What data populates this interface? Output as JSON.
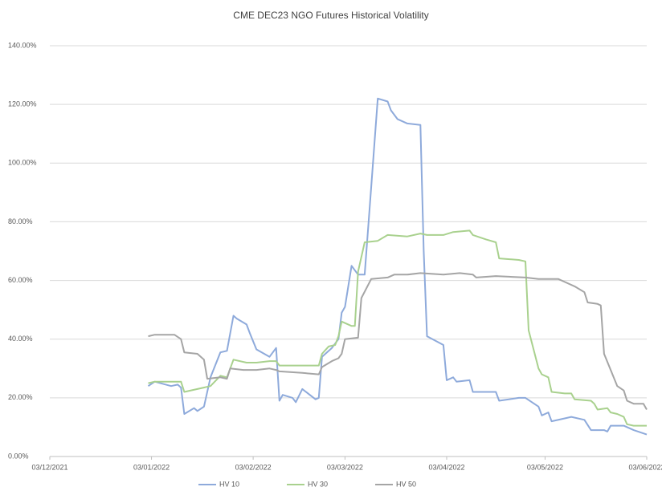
{
  "chart_data": {
    "type": "line",
    "title": "CME DEC23 NGO Futures Historical Volatility",
    "xlim": [
      "2021-12-03",
      "2022-06-03"
    ],
    "xticks": [
      {
        "value": "2021-12-03",
        "label": "03/12/2021"
      },
      {
        "value": "2022-01-03",
        "label": "03/01/2022"
      },
      {
        "value": "2022-02-03",
        "label": "03/02/2022"
      },
      {
        "value": "2022-03-03",
        "label": "03/03/2022"
      },
      {
        "value": "2022-04-03",
        "label": "03/04/2022"
      },
      {
        "value": "2022-05-03",
        "label": "03/05/2022"
      },
      {
        "value": "2022-06-03",
        "label": "03/06/2022"
      }
    ],
    "ylim": [
      0,
      140
    ],
    "yticks": [
      {
        "value": 0,
        "label": "0.00%"
      },
      {
        "value": 20,
        "label": "20.00%"
      },
      {
        "value": 40,
        "label": "40.00%"
      },
      {
        "value": 60,
        "label": "60.00%"
      },
      {
        "value": 80,
        "label": "80.00%"
      },
      {
        "value": 100,
        "label": "100.00%"
      },
      {
        "value": 120,
        "label": "120.00%"
      },
      {
        "value": 140,
        "label": "140.00%"
      }
    ],
    "grid": true,
    "legend": "bottom",
    "series": [
      {
        "name": "HV 10",
        "color": "#8eaadb",
        "x": [
          "2022-01-02",
          "2022-01-04",
          "2022-01-09",
          "2022-01-11",
          "2022-01-12",
          "2022-01-13",
          "2022-01-16",
          "2022-01-17",
          "2022-01-19",
          "2022-01-21",
          "2022-01-24",
          "2022-01-26",
          "2022-01-28",
          "2022-01-29",
          "2022-02-01",
          "2022-02-02",
          "2022-02-04",
          "2022-02-08",
          "2022-02-10",
          "2022-02-11",
          "2022-02-12",
          "2022-02-15",
          "2022-02-16",
          "2022-02-18",
          "2022-02-22",
          "2022-02-23",
          "2022-02-24",
          "2022-02-27",
          "2022-03-01",
          "2022-03-02",
          "2022-03-03",
          "2022-03-05",
          "2022-03-07",
          "2022-03-09",
          "2022-03-11",
          "2022-03-13",
          "2022-03-16",
          "2022-03-17",
          "2022-03-19",
          "2022-03-22",
          "2022-03-26",
          "2022-03-27",
          "2022-03-28",
          "2022-04-02",
          "2022-04-03",
          "2022-04-05",
          "2022-04-06",
          "2022-04-10",
          "2022-04-11",
          "2022-04-15",
          "2022-04-18",
          "2022-04-19",
          "2022-04-25",
          "2022-04-27",
          "2022-05-01",
          "2022-05-02",
          "2022-05-04",
          "2022-05-05",
          "2022-05-09",
          "2022-05-11",
          "2022-05-15",
          "2022-05-17",
          "2022-05-21",
          "2022-05-22",
          "2022-05-23",
          "2022-05-27",
          "2022-05-30",
          "2022-06-03"
        ],
        "values": [
          24,
          25.5,
          24,
          24.5,
          23.5,
          14.5,
          16.5,
          15.5,
          17,
          27,
          35.5,
          36,
          48,
          47,
          45,
          42,
          36.5,
          34,
          37,
          19,
          21,
          20,
          18.5,
          23,
          19.5,
          20,
          34,
          37,
          40,
          49,
          51,
          65,
          62,
          62,
          92,
          122,
          121,
          118,
          115,
          113.5,
          113,
          70,
          41,
          38,
          26,
          27,
          25.5,
          26,
          22,
          22,
          22,
          19,
          20,
          20,
          17,
          14,
          15,
          12,
          13,
          13.5,
          12.5,
          9,
          9,
          8.5,
          10.5,
          10.5,
          9,
          7.5
        ]
      },
      {
        "name": "HV 30",
        "color": "#a9d18e",
        "x": [
          "2022-01-02",
          "2022-01-04",
          "2022-01-12",
          "2022-01-13",
          "2022-01-17",
          "2022-01-21",
          "2022-01-24",
          "2022-01-26",
          "2022-01-28",
          "2022-02-01",
          "2022-02-04",
          "2022-02-08",
          "2022-02-10",
          "2022-02-11",
          "2022-02-18",
          "2022-02-23",
          "2022-02-24",
          "2022-02-26",
          "2022-02-28",
          "2022-03-01",
          "2022-03-02",
          "2022-03-05",
          "2022-03-06",
          "2022-03-07",
          "2022-03-09",
          "2022-03-13",
          "2022-03-16",
          "2022-03-22",
          "2022-03-26",
          "2022-03-28",
          "2022-04-02",
          "2022-04-05",
          "2022-04-10",
          "2022-04-11",
          "2022-04-15",
          "2022-04-18",
          "2022-04-19",
          "2022-04-25",
          "2022-04-27",
          "2022-04-28",
          "2022-05-01",
          "2022-05-02",
          "2022-05-04",
          "2022-05-05",
          "2022-05-09",
          "2022-05-11",
          "2022-05-12",
          "2022-05-17",
          "2022-05-18",
          "2022-05-19",
          "2022-05-22",
          "2022-05-23",
          "2022-05-25",
          "2022-05-27",
          "2022-05-28",
          "2022-05-30",
          "2022-06-03"
        ],
        "values": [
          25,
          25.5,
          25.5,
          22,
          23,
          24,
          27.5,
          27,
          33,
          32,
          32,
          32.5,
          32.5,
          31,
          31,
          31,
          35,
          37.5,
          38,
          41,
          46,
          44.5,
          44.5,
          63,
          73,
          73.5,
          75.5,
          75,
          76,
          75.5,
          75.5,
          76.5,
          77,
          75.5,
          74,
          73,
          67.5,
          67,
          66.5,
          43,
          30,
          28,
          27,
          22,
          21.5,
          21.5,
          19.5,
          19,
          18,
          16,
          16.5,
          15,
          14.5,
          13.5,
          11,
          10.5,
          10.5
        ]
      },
      {
        "name": "HV 50",
        "color": "#a5a5a5",
        "x": [
          "2022-01-02",
          "2022-01-04",
          "2022-01-10",
          "2022-01-12",
          "2022-01-13",
          "2022-01-17",
          "2022-01-19",
          "2022-01-20",
          "2022-01-24",
          "2022-01-26",
          "2022-01-27",
          "2022-01-31",
          "2022-02-04",
          "2022-02-08",
          "2022-02-10",
          "2022-02-11",
          "2022-02-18",
          "2022-02-23",
          "2022-02-24",
          "2022-02-27",
          "2022-03-01",
          "2022-03-02",
          "2022-03-03",
          "2022-03-07",
          "2022-03-08",
          "2022-03-11",
          "2022-03-16",
          "2022-03-18",
          "2022-03-22",
          "2022-03-26",
          "2022-04-02",
          "2022-04-07",
          "2022-04-11",
          "2022-04-12",
          "2022-04-18",
          "2022-04-27",
          "2022-05-01",
          "2022-05-07",
          "2022-05-09",
          "2022-05-12",
          "2022-05-15",
          "2022-05-16",
          "2022-05-19",
          "2022-05-20",
          "2022-05-21",
          "2022-05-25",
          "2022-05-27",
          "2022-05-28",
          "2022-05-30",
          "2022-06-02",
          "2022-06-03"
        ],
        "values": [
          41,
          41.5,
          41.5,
          40,
          35.5,
          35,
          33,
          26.5,
          27,
          26.5,
          30,
          29.5,
          29.5,
          30,
          29.5,
          29,
          28.5,
          28,
          30.5,
          32.5,
          33.5,
          35,
          40,
          40.5,
          54,
          60.5,
          61,
          62,
          62,
          62.5,
          62,
          62.5,
          62,
          61,
          61.5,
          61,
          60.5,
          60.5,
          59.5,
          58,
          56,
          52.5,
          52,
          51.5,
          35,
          24,
          22.5,
          19,
          18,
          18,
          16
        ]
      }
    ]
  }
}
